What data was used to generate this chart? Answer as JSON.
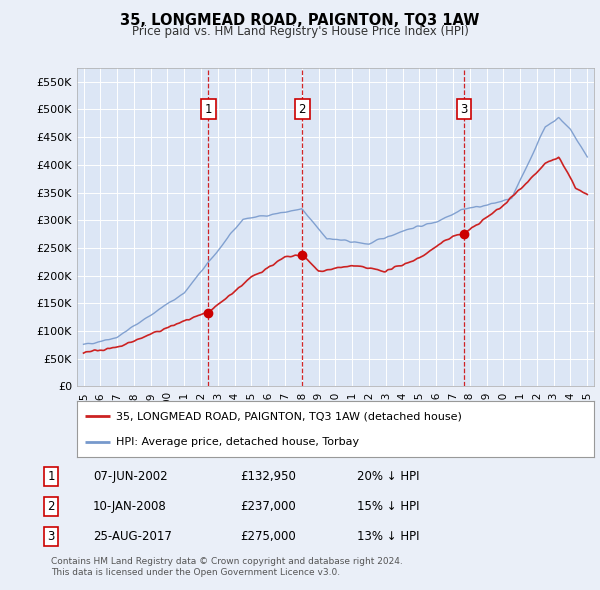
{
  "title": "35, LONGMEAD ROAD, PAIGNTON, TQ3 1AW",
  "subtitle": "Price paid vs. HM Land Registry's House Price Index (HPI)",
  "background_color": "#eaeff8",
  "plot_bg_color": "#dce6f5",
  "grid_color": "#ffffff",
  "ylim": [
    0,
    575000
  ],
  "yticks": [
    0,
    50000,
    100000,
    150000,
    200000,
    250000,
    300000,
    350000,
    400000,
    450000,
    500000,
    550000
  ],
  "ytick_labels": [
    "£0",
    "£50K",
    "£100K",
    "£150K",
    "£200K",
    "£250K",
    "£300K",
    "£350K",
    "£400K",
    "£450K",
    "£500K",
    "£550K"
  ],
  "legend_line1": "35, LONGMEAD ROAD, PAIGNTON, TQ3 1AW (detached house)",
  "legend_line2": "HPI: Average price, detached house, Torbay",
  "hpi_color": "#7799cc",
  "price_color": "#cc2222",
  "marker_color": "#cc0000",
  "dashed_line_color": "#cc0000",
  "transactions": [
    {
      "num": 1,
      "date_label": "07-JUN-2002",
      "price": 132950,
      "price_str": "£132,950",
      "pct": "20%",
      "x_year": 2002.44
    },
    {
      "num": 2,
      "date_label": "10-JAN-2008",
      "price": 237000,
      "price_str": "£237,000",
      "pct": "15%",
      "x_year": 2008.03
    },
    {
      "num": 3,
      "date_label": "25-AUG-2017",
      "price": 275000,
      "price_str": "£275,000",
      "pct": "13%",
      "x_year": 2017.65
    }
  ],
  "footnote1": "Contains HM Land Registry data © Crown copyright and database right 2024.",
  "footnote2": "This data is licensed under the Open Government Licence v3.0.",
  "xtick_years": [
    1995,
    1996,
    1997,
    1998,
    1999,
    2000,
    2001,
    2002,
    2003,
    2004,
    2005,
    2006,
    2007,
    2008,
    2009,
    2010,
    2011,
    2012,
    2013,
    2014,
    2015,
    2016,
    2017,
    2018,
    2019,
    2020,
    2021,
    2022,
    2023,
    2024,
    2025
  ],
  "xlim": [
    1994.6,
    2025.4
  ]
}
